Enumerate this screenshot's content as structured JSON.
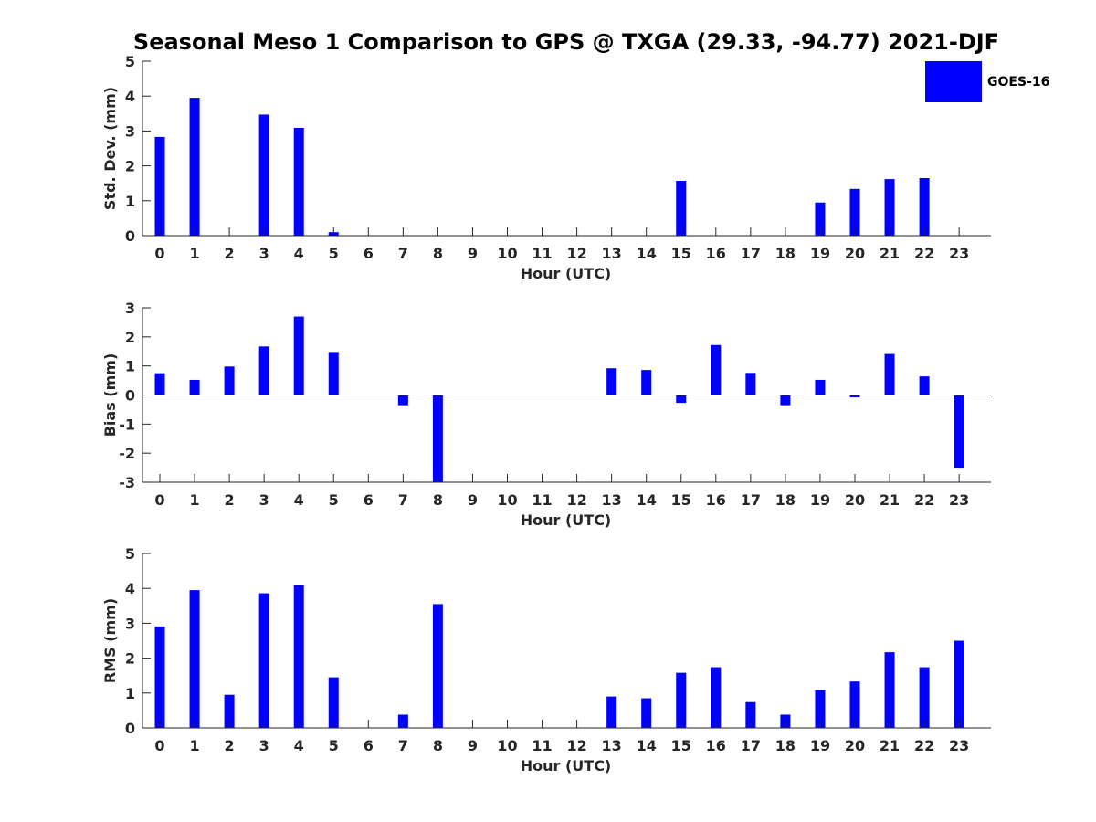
{
  "title": "Seasonal Meso 1 Comparison to GPS @ TXGA (29.33, -94.77) 2021-DJF",
  "legend": {
    "label": "GOES-16",
    "placement": "top-right"
  },
  "colors": {
    "bar": "#0000ff",
    "axis": "#262626"
  },
  "chart_data": [
    {
      "type": "bar",
      "categories": [
        "0",
        "1",
        "2",
        "3",
        "4",
        "5",
        "6",
        "7",
        "8",
        "9",
        "10",
        "11",
        "12",
        "13",
        "14",
        "15",
        "16",
        "17",
        "18",
        "19",
        "20",
        "21",
        "22",
        "23"
      ],
      "series": [
        {
          "name": "GOES-16",
          "values": [
            2.83,
            3.95,
            null,
            3.47,
            3.09,
            0.1,
            null,
            null,
            null,
            null,
            null,
            null,
            null,
            null,
            null,
            1.57,
            null,
            null,
            null,
            0.95,
            1.34,
            1.62,
            1.65,
            null
          ]
        }
      ],
      "xlabel": "Hour (UTC)",
      "ylabel": "Std. Dev. (mm)",
      "ylim": [
        0,
        5
      ],
      "yticks": [
        "0",
        "1",
        "2",
        "3",
        "4",
        "5"
      ],
      "grid": false
    },
    {
      "type": "bar",
      "categories": [
        "0",
        "1",
        "2",
        "3",
        "4",
        "5",
        "6",
        "7",
        "8",
        "9",
        "10",
        "11",
        "12",
        "13",
        "14",
        "15",
        "16",
        "17",
        "18",
        "19",
        "20",
        "21",
        "22",
        "23"
      ],
      "series": [
        {
          "name": "GOES-16",
          "values": [
            0.75,
            0.52,
            0.98,
            1.67,
            2.7,
            1.48,
            null,
            -0.35,
            -3.0,
            null,
            null,
            null,
            null,
            0.92,
            0.86,
            -0.27,
            1.72,
            0.76,
            -0.35,
            0.52,
            -0.08,
            1.41,
            0.64,
            -2.5
          ]
        }
      ],
      "xlabel": "Hour (UTC)",
      "ylabel": "Bias (mm)",
      "ylim": [
        -3,
        3
      ],
      "yticks": [
        "-3",
        "-2",
        "-1",
        "0",
        "1",
        "2",
        "3"
      ],
      "grid": false
    },
    {
      "type": "bar",
      "categories": [
        "0",
        "1",
        "2",
        "3",
        "4",
        "5",
        "6",
        "7",
        "8",
        "9",
        "10",
        "11",
        "12",
        "13",
        "14",
        "15",
        "16",
        "17",
        "18",
        "19",
        "20",
        "21",
        "22",
        "23"
      ],
      "series": [
        {
          "name": "GOES-16",
          "values": [
            2.91,
            3.95,
            0.95,
            3.86,
            4.1,
            1.45,
            null,
            0.38,
            3.55,
            null,
            null,
            null,
            null,
            0.9,
            0.85,
            1.58,
            1.74,
            0.74,
            0.38,
            1.08,
            1.33,
            2.17,
            1.74,
            2.5
          ]
        }
      ],
      "xlabel": "Hour (UTC)",
      "ylabel": "RMS (mm)",
      "ylim": [
        0,
        5
      ],
      "yticks": [
        "0",
        "1",
        "2",
        "3",
        "4",
        "5"
      ],
      "grid": false
    }
  ]
}
